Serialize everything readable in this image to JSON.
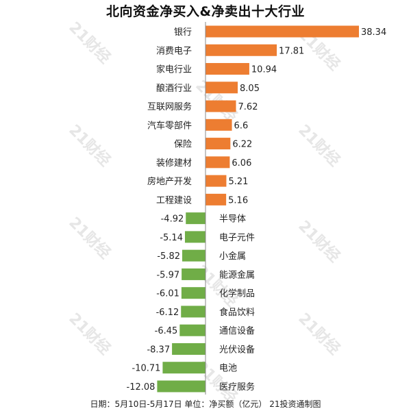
{
  "chart_data": {
    "type": "bar",
    "orientation": "horizontal",
    "title": "北向资金净买入&净卖出十大行业",
    "categories": [
      "银行",
      "消费电子",
      "家电行业",
      "酿酒行业",
      "互联网服务",
      "汽车零部件",
      "保险",
      "装修建材",
      "房地产开发",
      "工程建设",
      "半导体",
      "电子元件",
      "小金属",
      "能源金属",
      "化学制品",
      "食品饮料",
      "通信设备",
      "光伏设备",
      "电池",
      "医疗服务"
    ],
    "values": [
      38.34,
      17.81,
      10.94,
      8.05,
      7.62,
      6.6,
      6.22,
      6.06,
      5.21,
      5.16,
      -4.92,
      -5.14,
      -5.82,
      -5.97,
      -6.01,
      -6.12,
      -6.45,
      -8.37,
      -10.71,
      -12.08
    ],
    "value_labels": [
      "38.34",
      "17.81",
      "10.94",
      "8.05",
      "7.62",
      "6.6",
      "6.22",
      "6.06",
      "5.21",
      "5.16",
      "-4.92",
      "-5.14",
      "-5.82",
      "-5.97",
      "-6.01",
      "-6.12",
      "-6.45",
      "-8.37",
      "-10.71",
      "-12.08"
    ],
    "colors": {
      "positive": "#ED7D31",
      "negative": "#70AD47"
    },
    "grid": false,
    "legend": "none"
  },
  "footer": "日期：5月10日-5月17日 单位：净买额（亿元） 21投资通制图",
  "watermark": "21财经"
}
